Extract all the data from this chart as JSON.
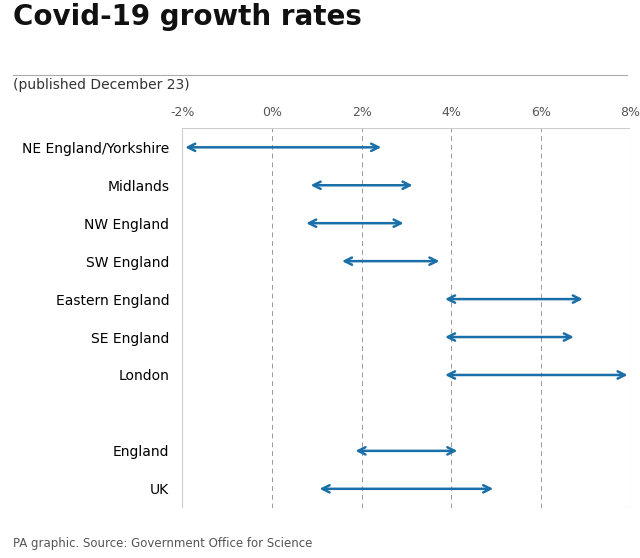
{
  "title": "Covid-19 growth rates",
  "subtitle": "(published December 23)",
  "source": "PA graphic. Source: Government Office for Science",
  "xlim": [
    -2,
    8
  ],
  "xticks": [
    -2,
    0,
    2,
    4,
    6,
    8
  ],
  "xticklabels": [
    "-2%",
    "0%",
    "2%",
    "4%",
    "6%",
    "8%"
  ],
  "regions": [
    "NE England/Yorkshire",
    "Midlands",
    "NW England",
    "SW England",
    "Eastern England",
    "SE England",
    "London",
    "",
    "England",
    "UK"
  ],
  "arrows": [
    {
      "low": -2.0,
      "high": 2.5
    },
    {
      "low": 0.8,
      "high": 3.2
    },
    {
      "low": 0.7,
      "high": 3.0
    },
    {
      "low": 1.5,
      "high": 3.8
    },
    {
      "low": 3.8,
      "high": 7.0
    },
    {
      "low": 3.8,
      "high": 6.8
    },
    {
      "low": 3.8,
      "high": 8.0
    },
    {
      "low": 0,
      "high": 0
    },
    {
      "low": 1.8,
      "high": 4.2
    },
    {
      "low": 1.0,
      "high": 5.0
    }
  ],
  "arrow_color": "#1a6fa8",
  "grid_color": "#cccccc",
  "dashed_grid_color": "#999999",
  "background_color": "#ffffff",
  "title_fontsize": 20,
  "subtitle_fontsize": 10,
  "label_fontsize": 10,
  "tick_fontsize": 9,
  "source_fontsize": 8.5
}
